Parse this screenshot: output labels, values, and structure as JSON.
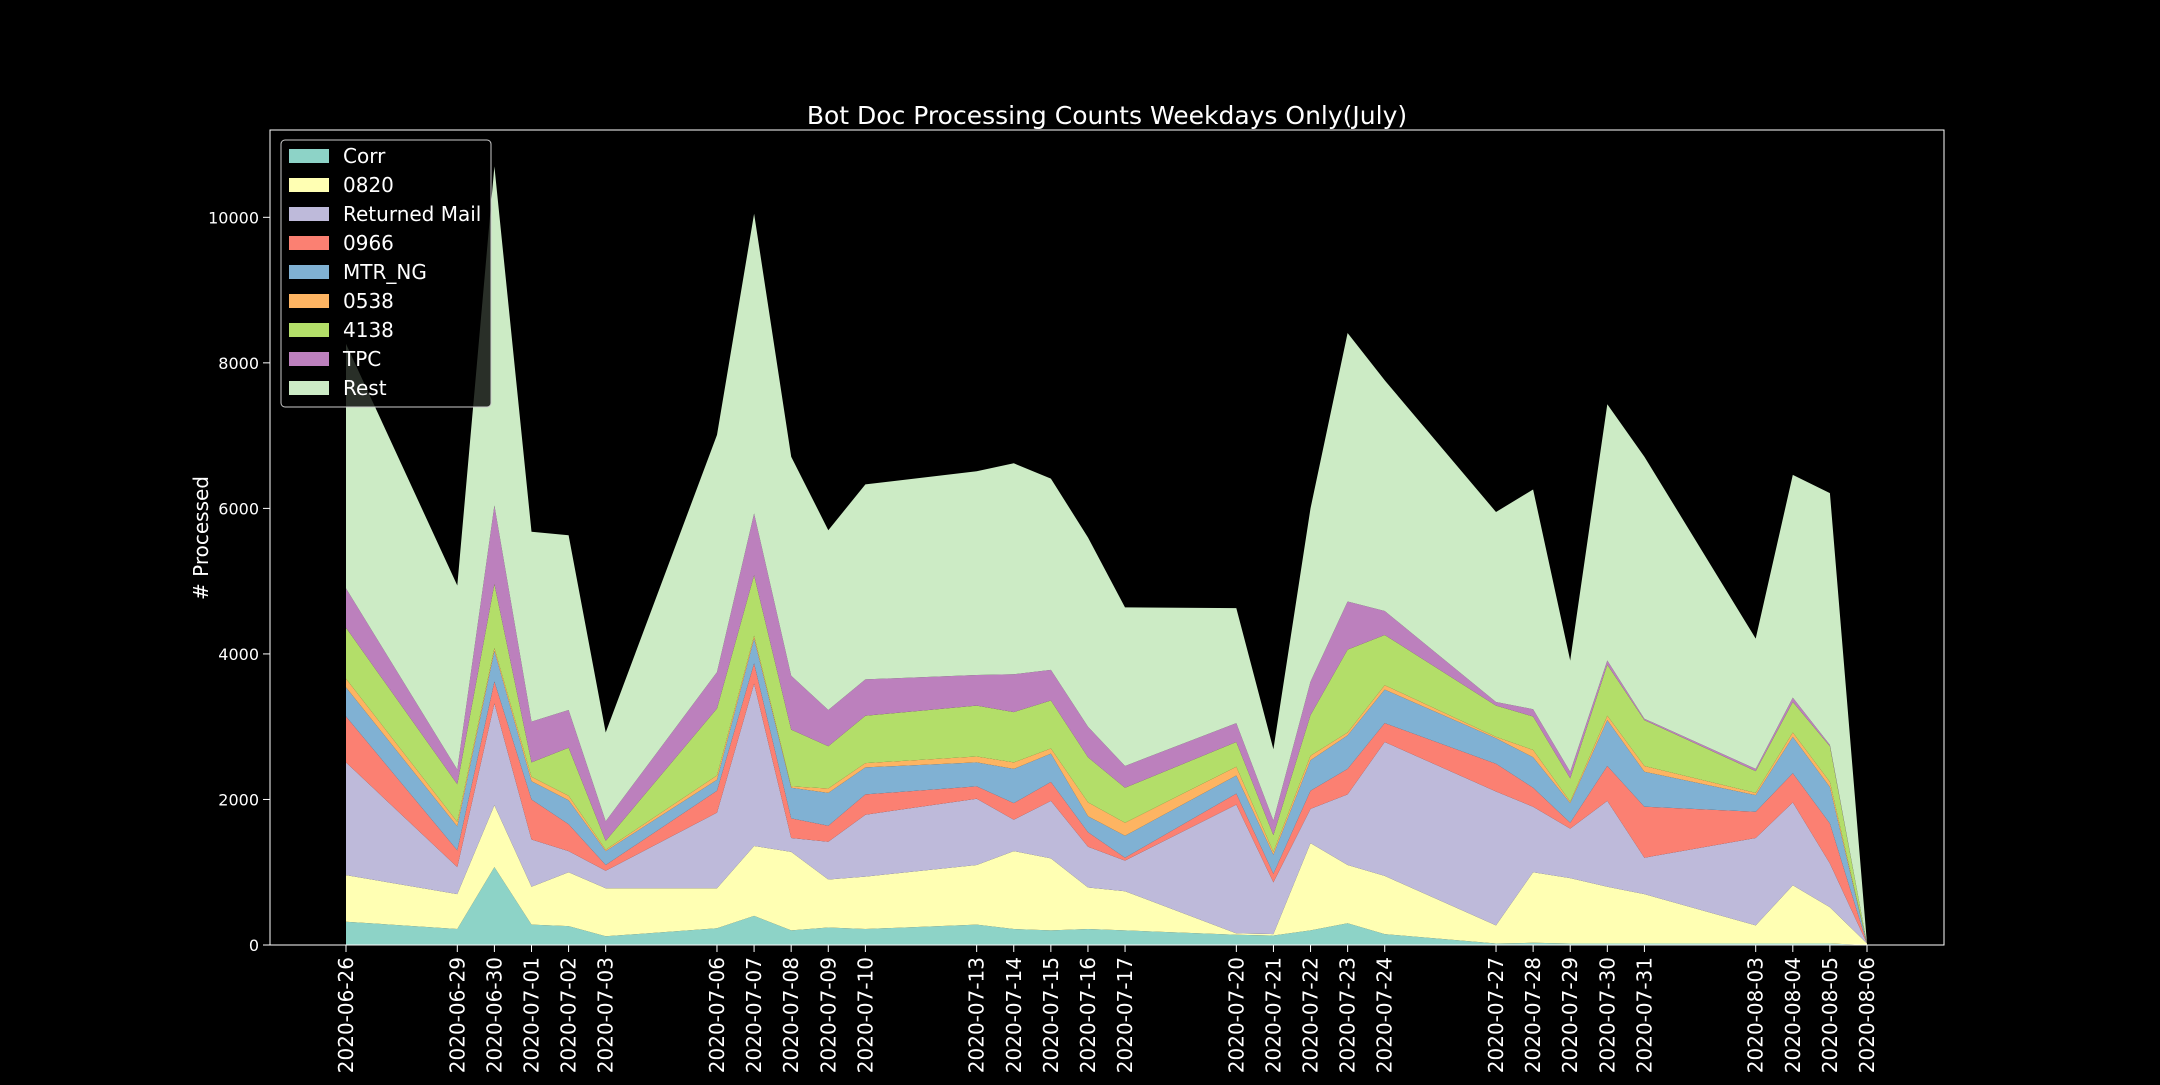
{
  "chart_data": {
    "type": "area",
    "stacked": true,
    "title": "Bot Doc Processing Counts Weekdays Only(July)",
    "xlabel": "",
    "ylabel": "# Processed",
    "ylim": [
      0,
      11200
    ],
    "yticks": [
      0,
      2000,
      4000,
      6000,
      8000,
      10000
    ],
    "grid": false,
    "legend_position": "top-left",
    "background": "#000000",
    "x": [
      "2020-06-26",
      "2020-06-29",
      "2020-06-30",
      "2020-07-01",
      "2020-07-02",
      "2020-07-03",
      "2020-07-06",
      "2020-07-07",
      "2020-07-08",
      "2020-07-09",
      "2020-07-10",
      "2020-07-13",
      "2020-07-14",
      "2020-07-15",
      "2020-07-16",
      "2020-07-17",
      "2020-07-20",
      "2020-07-21",
      "2020-07-22",
      "2020-07-23",
      "2020-07-24",
      "2020-07-27",
      "2020-07-28",
      "2020-07-29",
      "2020-07-30",
      "2020-07-31",
      "2020-08-03",
      "2020-08-04",
      "2020-08-05",
      "2020-08-06"
    ],
    "series": [
      {
        "name": "Corr",
        "color": "#8dd3c7",
        "values": [
          320,
          220,
          1070,
          280,
          260,
          120,
          230,
          400,
          200,
          240,
          220,
          280,
          220,
          200,
          220,
          200,
          140,
          130,
          200,
          300,
          150,
          20,
          30,
          20,
          20,
          20,
          20,
          20,
          20,
          0
        ]
      },
      {
        "name": "0820",
        "color": "#ffffb3",
        "values": [
          640,
          480,
          850,
          520,
          740,
          660,
          550,
          960,
          1080,
          660,
          720,
          820,
          1070,
          990,
          570,
          540,
          20,
          20,
          1200,
          800,
          800,
          250,
          970,
          900,
          780,
          680,
          250,
          800,
          500,
          20
        ]
      },
      {
        "name": "Returned Mail",
        "color": "#bebada",
        "values": [
          1550,
          370,
          1400,
          650,
          290,
          240,
          1040,
          2230,
          190,
          520,
          850,
          910,
          430,
          790,
          560,
          420,
          1770,
          710,
          470,
          970,
          1840,
          1840,
          900,
          680,
          1180,
          500,
          1200,
          1140,
          600,
          0
        ]
      },
      {
        "name": "0966",
        "color": "#fb8072",
        "values": [
          630,
          230,
          300,
          550,
          370,
          80,
          300,
          280,
          270,
          220,
          280,
          170,
          230,
          260,
          200,
          40,
          150,
          120,
          250,
          350,
          260,
          380,
          260,
          80,
          480,
          700,
          360,
          400,
          550,
          0
        ]
      },
      {
        "name": "MTR_NG",
        "color": "#80b1d3",
        "values": [
          400,
          330,
          420,
          250,
          330,
          190,
          150,
          340,
          420,
          450,
          370,
          330,
          470,
          390,
          220,
          300,
          250,
          260,
          420,
          460,
          460,
          350,
          420,
          270,
          630,
          480,
          230,
          500,
          500,
          0
        ]
      },
      {
        "name": "0538",
        "color": "#fdb462",
        "values": [
          120,
          60,
          40,
          60,
          60,
          20,
          60,
          40,
          20,
          60,
          60,
          80,
          90,
          70,
          190,
          180,
          120,
          40,
          60,
          40,
          60,
          20,
          100,
          20,
          60,
          80,
          30,
          60,
          70,
          0
        ]
      },
      {
        "name": "4138",
        "color": "#b3de69",
        "values": [
          700,
          520,
          880,
          200,
          660,
          120,
          920,
          830,
          780,
          580,
          650,
          700,
          690,
          660,
          620,
          480,
          340,
          230,
          560,
          1140,
          690,
          430,
          460,
          320,
          700,
          630,
          300,
          420,
          490,
          0
        ]
      },
      {
        "name": "TPC",
        "color": "#bc80bd",
        "values": [
          540,
          200,
          1080,
          560,
          520,
          270,
          500,
          850,
          740,
          500,
          500,
          420,
          520,
          420,
          420,
          300,
          260,
          200,
          460,
          660,
          330,
          50,
          100,
          90,
          60,
          20,
          30,
          60,
          20,
          0
        ]
      },
      {
        "name": "Rest",
        "color": "#ccebc5",
        "values": [
          3360,
          2530,
          4660,
          2610,
          2400,
          1220,
          3260,
          4120,
          3010,
          2470,
          2680,
          2800,
          2900,
          2630,
          2600,
          2180,
          1580,
          980,
          2380,
          3690,
          3170,
          2610,
          3020,
          1530,
          3520,
          3600,
          1790,
          3060,
          3460,
          0
        ]
      }
    ]
  }
}
